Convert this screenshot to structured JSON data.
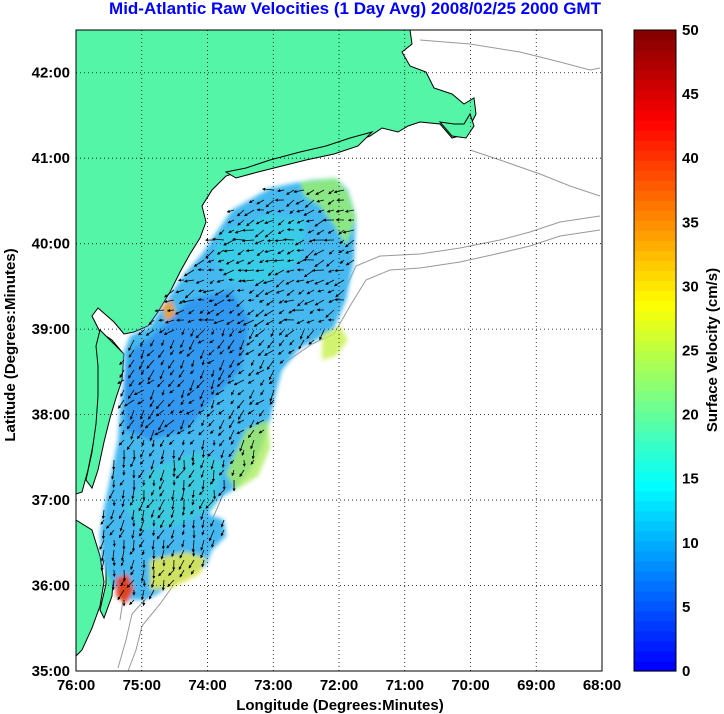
{
  "title": "Mid-Atlantic Raw Velocities (1 Day Avg) 2008/02/25 2000 GMT",
  "colors": {
    "title": "#0000ff",
    "land": "#55f5a8",
    "ocean": "#ffffff",
    "coastline": "#000000",
    "bathymetry": "#999999",
    "grid": "#000000",
    "arrows": "#000000"
  },
  "map": {
    "xlabel": "Longitude (Degrees:Minutes)",
    "ylabel": "Latitude (Degrees:Minutes)",
    "lon_range": [
      -76,
      -68
    ],
    "lat_range": [
      35,
      42.5
    ],
    "x_ticks": [
      "76:00",
      "75:00",
      "74:00",
      "73:00",
      "72:00",
      "71:00",
      "70:00",
      "69:00",
      "68:00"
    ],
    "y_ticks": [
      "35:00",
      "36:00",
      "37:00",
      "38:00",
      "39:00",
      "40:00",
      "41:00",
      "42:00"
    ],
    "grid": "dotted"
  },
  "colorbar": {
    "label": "Surface Velocity (cm/s)",
    "ticks": [
      "0",
      "5",
      "10",
      "15",
      "20",
      "25",
      "30",
      "35",
      "40",
      "45",
      "50"
    ],
    "range": [
      0,
      50
    ],
    "colormap": "jet"
  }
}
